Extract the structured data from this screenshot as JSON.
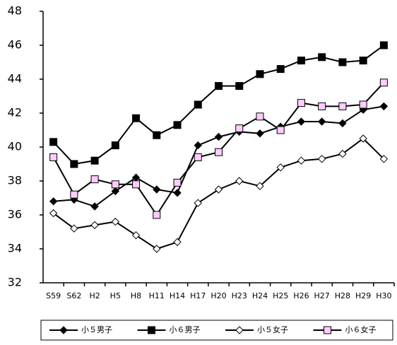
{
  "chart_data": {
    "type": "line",
    "categories": [
      "S59",
      "S62",
      "H2",
      "H5",
      "H8",
      "H11",
      "H14",
      "H17",
      "H20",
      "H23",
      "H24",
      "H25",
      "H26",
      "H27",
      "H28",
      "H29",
      "H30"
    ],
    "series": [
      {
        "name": "小５男子",
        "color": "#000000",
        "marker": "diamond",
        "marker_fill": "#000000",
        "values": [
          36.8,
          36.9,
          36.5,
          37.4,
          38.2,
          37.5,
          37.3,
          40.1,
          40.6,
          40.9,
          40.8,
          41.2,
          41.5,
          41.5,
          41.4,
          42.2,
          42.4
        ]
      },
      {
        "name": "小６男子",
        "color": "#000000",
        "marker": "square",
        "marker_fill": "#000000",
        "values": [
          40.3,
          39.0,
          39.2,
          40.1,
          41.7,
          40.7,
          41.3,
          42.5,
          43.6,
          43.6,
          44.3,
          44.6,
          45.1,
          45.3,
          45.0,
          45.1,
          46.0
        ]
      },
      {
        "name": "小５女子",
        "color": "#000000",
        "marker": "diamond",
        "marker_fill": "#ffffff",
        "values": [
          36.1,
          35.2,
          35.4,
          35.6,
          34.8,
          34.0,
          34.4,
          36.7,
          37.5,
          38.0,
          37.7,
          38.8,
          39.2,
          39.3,
          39.6,
          40.5,
          39.3
        ]
      },
      {
        "name": "小６女子",
        "color": "#000000",
        "marker": "square",
        "marker_fill": "#ffccff",
        "values": [
          39.4,
          37.2,
          38.1,
          37.8,
          37.8,
          36.0,
          37.9,
          39.4,
          39.7,
          41.1,
          41.8,
          41.0,
          42.6,
          42.4,
          42.4,
          42.5,
          43.8
        ]
      }
    ],
    "ylim": [
      32,
      48
    ],
    "yticks": [
      32,
      34,
      36,
      38,
      40,
      42,
      44,
      46,
      48
    ],
    "legend": "bottom"
  }
}
